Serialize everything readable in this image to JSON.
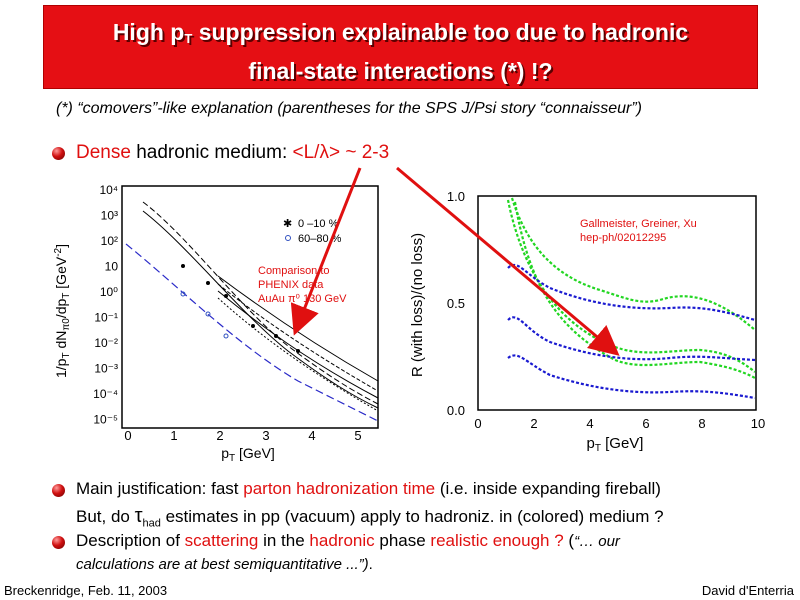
{
  "title": {
    "line1_pre": "High p",
    "line1_sub": "T",
    "line1_post": " suppression explainable too due to hadronic",
    "line2": "final-state interactions (*) !?"
  },
  "subtitle": "(*) “comovers”-like explanation (parentheses for the SPS J/Psi story “connaisseur”)",
  "bullet1": {
    "dense": "Dense",
    "mid": " hadronic medium: ",
    "ratio": "<L/λ> ~ 2-3"
  },
  "left_plot": {
    "ylabel": "1/p_T dN_π0/dp_T [GeV^-2]",
    "xlabel": "p_T [GeV]",
    "legend": [
      "0 –10 %",
      "60–80 %"
    ],
    "annotation": [
      "Comparison to",
      "PHENIX data",
      "AuAu π⁰ 130 GeV"
    ],
    "y_ticks": [
      "10⁴",
      "10³",
      "10²",
      "10",
      "10⁰",
      "10⁻¹",
      "10⁻²",
      "10⁻³",
      "10⁻⁴",
      "10⁻⁵"
    ],
    "x_ticks": [
      "0",
      "1",
      "2",
      "3",
      "4",
      "5"
    ]
  },
  "right_plot": {
    "ylabel": "R (with loss)/(no loss)",
    "xlabel": "p_T [GeV]",
    "annotation": [
      "Gallmeister, Greiner, Xu",
      "hep-ph/02012295"
    ],
    "y_ticks": [
      "1.0",
      "0.5",
      "0.0"
    ],
    "x_ticks": [
      "0",
      "2",
      "4",
      "6",
      "8",
      "10"
    ]
  },
  "bullet2": {
    "pre": "Main justification: fast ",
    "red": "parton hadronization time",
    "post": " (i.e. inside expanding fireball)"
  },
  "line3": {
    "pre": "But, do ",
    "tau": "τ",
    "tau_sub": "had",
    "post": " estimates in pp (vacuum) apply to hadroniz. in (colored) medium ?"
  },
  "bullet3": {
    "pre": "Description of ",
    "red1": "scattering",
    "mid1": " in the ",
    "red2": "hadronic",
    "mid2": " phase ",
    "red3": "realistic enough ?",
    "post": "  (",
    "quote": "“… our",
    "line2": "calculations are at best semiquantitative ...”)",
    "line2_end": "."
  },
  "footer": {
    "left": "Breckenridge, Feb. 11, 2003",
    "right": "David d'Enterria"
  },
  "colors": {
    "title_bg": "#e50f14",
    "accent_red": "#e01010",
    "green": "#22d622",
    "blue": "#1a1ad0"
  }
}
